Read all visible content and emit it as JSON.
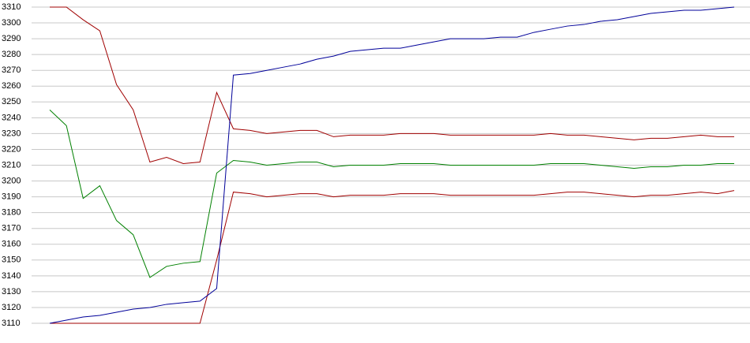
{
  "chart_data": {
    "type": "line",
    "ylim": [
      3110,
      3310
    ],
    "yticks": [
      3110,
      3120,
      3130,
      3140,
      3150,
      3160,
      3170,
      3180,
      3190,
      3200,
      3210,
      3220,
      3230,
      3240,
      3250,
      3260,
      3270,
      3280,
      3290,
      3300,
      3310
    ],
    "grid": true,
    "series": [
      {
        "color": "#a00000",
        "values": [
          3310,
          3310,
          3302,
          3295,
          3261,
          3245,
          3212,
          3215,
          3211,
          3212,
          3256,
          3233,
          3232,
          3230,
          3231,
          3232,
          3232,
          3228,
          3229,
          3229,
          3229,
          3230,
          3230,
          3230,
          3229,
          3229,
          3229,
          3229,
          3229,
          3229,
          3230,
          3229,
          3229,
          3228,
          3227,
          3226,
          3227,
          3227,
          3228,
          3229,
          3228,
          3228
        ]
      },
      {
        "color": "#008000",
        "values": [
          3245,
          3235,
          3189,
          3197,
          3175,
          3166,
          3139,
          3146,
          3148,
          3149,
          3205,
          3213,
          3212,
          3210,
          3211,
          3212,
          3212,
          3209,
          3210,
          3210,
          3210,
          3211,
          3211,
          3211,
          3210,
          3210,
          3210,
          3210,
          3210,
          3210,
          3211,
          3211,
          3211,
          3210,
          3209,
          3208,
          3209,
          3209,
          3210,
          3210,
          3211,
          3211
        ]
      },
      {
        "color": "#a00000",
        "values": [
          3110,
          3110,
          3110,
          3110,
          3110,
          3110,
          3110,
          3110,
          3110,
          3110,
          3150,
          3193,
          3192,
          3190,
          3191,
          3192,
          3192,
          3190,
          3191,
          3191,
          3191,
          3192,
          3192,
          3192,
          3191,
          3191,
          3191,
          3191,
          3191,
          3191,
          3192,
          3193,
          3193,
          3192,
          3191,
          3190,
          3191,
          3191,
          3192,
          3193,
          3192,
          3194
        ]
      },
      {
        "color": "#000099",
        "values": [
          3110,
          3112,
          3114,
          3115,
          3117,
          3119,
          3120,
          3122,
          3123,
          3124,
          3132,
          3267,
          3268,
          3270,
          3272,
          3274,
          3277,
          3279,
          3282,
          3283,
          3284,
          3284,
          3286,
          3288,
          3290,
          3290,
          3290,
          3291,
          3291,
          3294,
          3296,
          3298,
          3299,
          3301,
          3302,
          3304,
          3306,
          3307,
          3308,
          3308,
          3309,
          3310
        ]
      }
    ]
  }
}
